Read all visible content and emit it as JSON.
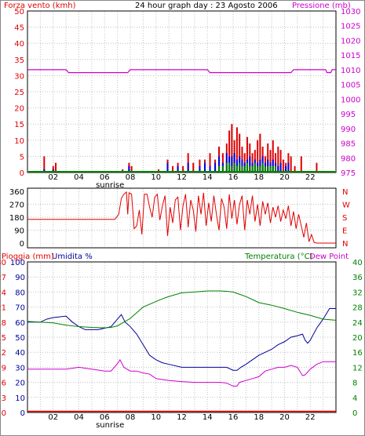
{
  "colors": {
    "red": "#e00000",
    "blue": "#0000e0",
    "green": "#008000",
    "magenta": "#cc00cc",
    "grid": "#c0c0c0",
    "dark_blue": "#000099"
  },
  "header": {
    "left": "Forza vento (kmh)",
    "center": "24 hour graph day : 23 Agosto 2006",
    "right": "Pressione (mb)"
  },
  "middle_header": {
    "left_top": "360",
    "right_top": "N"
  },
  "bottom_header": {
    "left": "Pioggia (mm)",
    "left2": "Umidita %",
    "right": "Temperatura (°C)",
    "right2": "Dew Point"
  },
  "x_axis": {
    "ticks": [
      "02",
      "04",
      "06",
      "08",
      "10",
      "12",
      "14",
      "16",
      "18",
      "20",
      "22"
    ],
    "sunrise_label": "sunrise",
    "sunrise_hour": 6.3
  },
  "chart_data": [
    {
      "type": "bar",
      "name": "wind-pressure",
      "title": "24 hour graph day : 23 Agosto 2006",
      "ylabel": "Forza vento (kmh)",
      "y2label": "Pressione (mb)",
      "xlim": [
        0,
        24
      ],
      "ylim": [
        0,
        50
      ],
      "y2lim": [
        975,
        1030
      ],
      "y_ticks": [
        "0",
        "5",
        "10",
        "15",
        "20",
        "25",
        "30",
        "35",
        "40",
        "45",
        "50"
      ],
      "y2_ticks": [
        "975",
        "980",
        "985",
        "990",
        "995",
        "1000",
        "1005",
        "1010",
        "1015",
        "1020",
        "1025",
        "1030"
      ],
      "gust": [
        [
          1.3,
          5
        ],
        [
          2,
          2
        ],
        [
          2.2,
          3
        ],
        [
          7.4,
          1
        ],
        [
          7.9,
          3
        ],
        [
          8.1,
          2
        ],
        [
          10.2,
          1
        ],
        [
          10.9,
          4
        ],
        [
          11.3,
          2
        ],
        [
          11.7,
          3
        ],
        [
          12.1,
          2
        ],
        [
          12.5,
          6
        ],
        [
          12.9,
          3
        ],
        [
          13.4,
          4
        ],
        [
          13.8,
          4
        ],
        [
          14.2,
          6
        ],
        [
          14.6,
          4
        ],
        [
          14.9,
          8
        ],
        [
          15.2,
          6
        ],
        [
          15.5,
          9
        ],
        [
          15.7,
          13
        ],
        [
          15.9,
          15
        ],
        [
          16.1,
          10
        ],
        [
          16.3,
          14
        ],
        [
          16.5,
          12
        ],
        [
          16.7,
          8
        ],
        [
          16.9,
          6
        ],
        [
          17.1,
          11
        ],
        [
          17.3,
          9
        ],
        [
          17.5,
          6
        ],
        [
          17.7,
          7
        ],
        [
          17.9,
          10
        ],
        [
          18.1,
          12
        ],
        [
          18.3,
          8
        ],
        [
          18.5,
          5
        ],
        [
          18.7,
          9
        ],
        [
          18.9,
          7
        ],
        [
          19.1,
          10
        ],
        [
          19.3,
          6
        ],
        [
          19.5,
          8
        ],
        [
          19.7,
          7
        ],
        [
          19.9,
          4
        ],
        [
          20.1,
          3
        ],
        [
          20.3,
          6
        ],
        [
          20.5,
          5
        ],
        [
          20.8,
          2
        ],
        [
          21.3,
          5
        ],
        [
          22.5,
          3
        ]
      ],
      "wind": [
        [
          1.3,
          1
        ],
        [
          2,
          1
        ],
        [
          7.9,
          2
        ],
        [
          10.9,
          3
        ],
        [
          11.7,
          2
        ],
        [
          12.5,
          3
        ],
        [
          13.4,
          2
        ],
        [
          13.8,
          3
        ],
        [
          14.2,
          2
        ],
        [
          14.6,
          3
        ],
        [
          14.9,
          5
        ],
        [
          15.2,
          3
        ],
        [
          15.5,
          6
        ],
        [
          15.7,
          5
        ],
        [
          15.9,
          5
        ],
        [
          16.1,
          6
        ],
        [
          16.3,
          4
        ],
        [
          16.5,
          5
        ],
        [
          16.7,
          4
        ],
        [
          16.9,
          3
        ],
        [
          17.1,
          4
        ],
        [
          17.3,
          5
        ],
        [
          17.5,
          3
        ],
        [
          17.7,
          4
        ],
        [
          17.9,
          3
        ],
        [
          18.1,
          4
        ],
        [
          18.3,
          5
        ],
        [
          18.5,
          3
        ],
        [
          18.7,
          4
        ],
        [
          18.9,
          3
        ],
        [
          19.1,
          4
        ],
        [
          19.3,
          3
        ],
        [
          19.5,
          2
        ],
        [
          19.7,
          3
        ],
        [
          20.1,
          2
        ],
        [
          20.3,
          3
        ]
      ],
      "wind_low": [
        [
          14.9,
          2
        ],
        [
          15.2,
          2
        ],
        [
          15.5,
          3
        ],
        [
          15.7,
          3
        ],
        [
          15.9,
          2
        ],
        [
          16.1,
          3
        ],
        [
          16.3,
          2
        ],
        [
          16.5,
          3
        ],
        [
          16.7,
          2
        ],
        [
          16.9,
          2
        ],
        [
          17.1,
          3
        ],
        [
          17.3,
          2
        ],
        [
          17.5,
          2
        ],
        [
          17.7,
          3
        ],
        [
          17.9,
          2
        ],
        [
          18.1,
          2
        ],
        [
          18.3,
          3
        ],
        [
          18.5,
          2
        ],
        [
          18.7,
          2
        ],
        [
          18.9,
          2
        ],
        [
          19.1,
          2
        ],
        [
          19.3,
          2
        ]
      ],
      "pressure": [
        [
          0,
          1010
        ],
        [
          3,
          1010
        ],
        [
          3.2,
          1009
        ],
        [
          7.8,
          1009
        ],
        [
          8,
          1010
        ],
        [
          14,
          1010
        ],
        [
          14.2,
          1009
        ],
        [
          20.5,
          1009
        ],
        [
          20.7,
          1010
        ],
        [
          23.2,
          1010
        ],
        [
          23.3,
          1009
        ],
        [
          23.6,
          1009
        ],
        [
          23.7,
          1010
        ],
        [
          24,
          1010
        ]
      ]
    },
    {
      "type": "line",
      "name": "wind-direction",
      "ylim": [
        0,
        360
      ],
      "y_ticks": [
        "0",
        "90",
        "180",
        "270",
        "360"
      ],
      "y2_ticks": [
        "N",
        "E",
        "S",
        "W",
        "N"
      ],
      "direction": [
        [
          0,
          165
        ],
        [
          6.8,
          165
        ],
        [
          7.1,
          200
        ],
        [
          7.3,
          310
        ],
        [
          7.5,
          340
        ],
        [
          7.7,
          355
        ],
        [
          7.8,
          200
        ],
        [
          7.9,
          350
        ],
        [
          8.1,
          340
        ],
        [
          8.3,
          100
        ],
        [
          8.5,
          120
        ],
        [
          8.7,
          230
        ],
        [
          8.9,
          60
        ],
        [
          9.1,
          340
        ],
        [
          9.3,
          340
        ],
        [
          9.5,
          250
        ],
        [
          9.7,
          180
        ],
        [
          9.9,
          320
        ],
        [
          10.1,
          340
        ],
        [
          10.3,
          160
        ],
        [
          10.5,
          260
        ],
        [
          10.7,
          330
        ],
        [
          10.9,
          50
        ],
        [
          11.1,
          250
        ],
        [
          11.3,
          140
        ],
        [
          11.5,
          300
        ],
        [
          11.7,
          320
        ],
        [
          11.9,
          90
        ],
        [
          12.1,
          260
        ],
        [
          12.3,
          340
        ],
        [
          12.5,
          110
        ],
        [
          12.7,
          300
        ],
        [
          12.9,
          230
        ],
        [
          13.1,
          80
        ],
        [
          13.3,
          330
        ],
        [
          13.5,
          200
        ],
        [
          13.7,
          350
        ],
        [
          13.9,
          120
        ],
        [
          14.1,
          280
        ],
        [
          14.3,
          150
        ],
        [
          14.5,
          330
        ],
        [
          14.7,
          200
        ],
        [
          14.9,
          90
        ],
        [
          15.1,
          310
        ],
        [
          15.3,
          250
        ],
        [
          15.5,
          100
        ],
        [
          15.7,
          340
        ],
        [
          15.9,
          170
        ],
        [
          16.1,
          300
        ],
        [
          16.3,
          130
        ],
        [
          16.5,
          270
        ],
        [
          16.7,
          330
        ],
        [
          16.9,
          90
        ],
        [
          17.1,
          300
        ],
        [
          17.3,
          200
        ],
        [
          17.5,
          330
        ],
        [
          17.7,
          150
        ],
        [
          17.9,
          270
        ],
        [
          18.1,
          120
        ],
        [
          18.3,
          290
        ],
        [
          18.5,
          200
        ],
        [
          18.7,
          280
        ],
        [
          18.9,
          140
        ],
        [
          19.1,
          250
        ],
        [
          19.3,
          180
        ],
        [
          19.5,
          260
        ],
        [
          19.7,
          150
        ],
        [
          19.9,
          230
        ],
        [
          20.1,
          170
        ],
        [
          20.3,
          260
        ],
        [
          20.5,
          120
        ],
        [
          20.7,
          220
        ],
        [
          20.9,
          100
        ],
        [
          21.1,
          200
        ],
        [
          21.3,
          120
        ],
        [
          21.5,
          40
        ],
        [
          21.7,
          140
        ],
        [
          21.9,
          10
        ],
        [
          22.1,
          60
        ],
        [
          22.3,
          5
        ],
        [
          22.5,
          0
        ],
        [
          24,
          0
        ]
      ]
    },
    {
      "type": "line",
      "name": "humidity-temperature",
      "y_ticks": [
        "0",
        "10",
        "20",
        "30",
        "40",
        "50",
        "60",
        "70",
        "80",
        "90",
        "100"
      ],
      "y_ticks_b": [
        "0",
        "3",
        "6",
        "9",
        "12",
        "15",
        "18",
        "21",
        "24",
        "27",
        "30"
      ],
      "y2_ticks": [
        "0",
        "4",
        "8",
        "12",
        "16",
        "20",
        "24",
        "28",
        "32",
        "36",
        "40"
      ],
      "ylim": [
        0,
        100
      ],
      "y2lim": [
        0,
        40
      ],
      "humidity": [
        [
          0,
          60
        ],
        [
          1,
          60
        ],
        [
          1.5,
          62
        ],
        [
          2,
          63
        ],
        [
          3,
          64
        ],
        [
          3.5,
          60
        ],
        [
          4,
          57
        ],
        [
          4.5,
          55
        ],
        [
          5,
          55
        ],
        [
          5.5,
          55
        ],
        [
          6,
          56
        ],
        [
          6.5,
          57
        ],
        [
          7,
          62
        ],
        [
          7.3,
          65
        ],
        [
          7.6,
          60
        ],
        [
          8,
          57
        ],
        [
          8.5,
          52
        ],
        [
          9,
          45
        ],
        [
          9.5,
          38
        ],
        [
          10,
          35
        ],
        [
          10.5,
          33
        ],
        [
          11,
          32
        ],
        [
          12,
          30
        ],
        [
          13,
          30
        ],
        [
          14,
          30
        ],
        [
          15,
          30
        ],
        [
          15.5,
          30
        ],
        [
          16,
          28
        ],
        [
          16.3,
          28
        ],
        [
          16.6,
          30
        ],
        [
          17,
          32
        ],
        [
          17.5,
          35
        ],
        [
          18,
          38
        ],
        [
          18.5,
          40
        ],
        [
          19,
          42
        ],
        [
          19.5,
          45
        ],
        [
          20,
          47
        ],
        [
          20.5,
          50
        ],
        [
          21,
          51
        ],
        [
          21.4,
          52
        ],
        [
          21.6,
          48
        ],
        [
          21.8,
          46
        ],
        [
          22,
          48
        ],
        [
          22.5,
          56
        ],
        [
          23,
          62
        ],
        [
          23.5,
          69
        ],
        [
          24,
          69
        ]
      ],
      "dew_point": [
        [
          0,
          11.5
        ],
        [
          2,
          11.5
        ],
        [
          3,
          11.5
        ],
        [
          4,
          12
        ],
        [
          5,
          11.5
        ],
        [
          6,
          11
        ],
        [
          6.5,
          11
        ],
        [
          7,
          13
        ],
        [
          7.2,
          14
        ],
        [
          7.5,
          12
        ],
        [
          8,
          11
        ],
        [
          8.5,
          11
        ],
        [
          9,
          10.5
        ],
        [
          9.5,
          10.2
        ],
        [
          10,
          9
        ],
        [
          11,
          8.5
        ],
        [
          12,
          8.2
        ],
        [
          13,
          8
        ],
        [
          14,
          8
        ],
        [
          15,
          8
        ],
        [
          15.5,
          7.8
        ],
        [
          16,
          7
        ],
        [
          16.3,
          7
        ],
        [
          16.5,
          8
        ],
        [
          17,
          8.5
        ],
        [
          17.5,
          9
        ],
        [
          18,
          9.5
        ],
        [
          18.5,
          11
        ],
        [
          19,
          11.5
        ],
        [
          19.5,
          12
        ],
        [
          20,
          12
        ],
        [
          20.5,
          12.5
        ],
        [
          21,
          12
        ],
        [
          21.4,
          9.8
        ],
        [
          21.6,
          10
        ],
        [
          22,
          11.5
        ],
        [
          22.5,
          12.8
        ],
        [
          23,
          13.5
        ],
        [
          23.5,
          13.5
        ],
        [
          24,
          13.5
        ]
      ],
      "temperature": [
        [
          0,
          24.2
        ],
        [
          2,
          23.8
        ],
        [
          3,
          23.2
        ],
        [
          4,
          22.8
        ],
        [
          5,
          22.6
        ],
        [
          6,
          22.5
        ],
        [
          6.5,
          22.6
        ],
        [
          7,
          23
        ],
        [
          7.5,
          24
        ],
        [
          8,
          25
        ],
        [
          8.5,
          26.5
        ],
        [
          9,
          28
        ],
        [
          10,
          29.5
        ],
        [
          10.5,
          30.2
        ],
        [
          11,
          30.8
        ],
        [
          12,
          31.8
        ],
        [
          13,
          32
        ],
        [
          14,
          32.3
        ],
        [
          15,
          32.3
        ],
        [
          15.5,
          32.2
        ],
        [
          16,
          32
        ],
        [
          16.5,
          31.4
        ],
        [
          17,
          30.8
        ],
        [
          17.5,
          30
        ],
        [
          18,
          29.2
        ],
        [
          19,
          28.5
        ],
        [
          20,
          27.6
        ],
        [
          21,
          26.6
        ],
        [
          22,
          25.8
        ],
        [
          23,
          24.8
        ],
        [
          24,
          24.5
        ]
      ],
      "rain": [
        [
          0,
          0
        ],
        [
          24,
          0
        ]
      ]
    }
  ]
}
